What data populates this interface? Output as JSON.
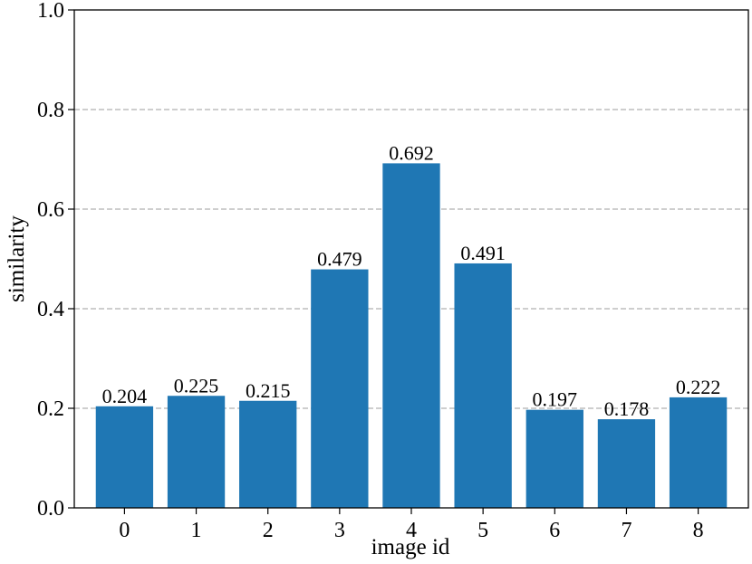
{
  "chart_data": {
    "type": "bar",
    "title": "",
    "xlabel": "image id",
    "ylabel": "similarity",
    "categories": [
      "0",
      "1",
      "2",
      "3",
      "4",
      "5",
      "6",
      "7",
      "8"
    ],
    "values": [
      0.204,
      0.225,
      0.215,
      0.479,
      0.692,
      0.491,
      0.197,
      0.178,
      0.222
    ],
    "data_labels": [
      "0.204",
      "0.225",
      "0.215",
      "0.479",
      "0.692",
      "0.491",
      "0.197",
      "0.178",
      "0.222"
    ],
    "ylim": [
      0.0,
      1.0
    ],
    "yticks": [
      "0.0",
      "0.2",
      "0.4",
      "0.6",
      "0.8",
      "1.0"
    ],
    "grid": "y-dashed",
    "legend": "none",
    "colors": {
      "bar": "#1f77b4",
      "grid": "#b0b0b0",
      "axis": "#000000"
    }
  }
}
